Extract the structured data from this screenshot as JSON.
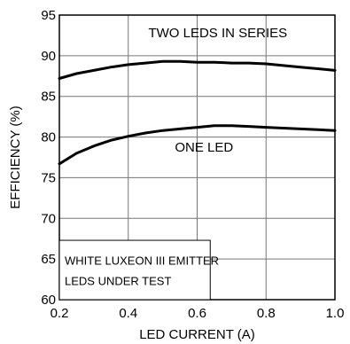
{
  "chart_data": {
    "type": "line",
    "xlabel": "LED CURRENT (A)",
    "ylabel": "EFFICIENCY (%)",
    "xlim": [
      0.2,
      1.0
    ],
    "ylim": [
      60,
      95
    ],
    "xticks": [
      0.2,
      0.4,
      0.6,
      0.8,
      1.0
    ],
    "xtick_labels": [
      "0.2",
      "0.4",
      "0.6",
      "0.8",
      "1.0"
    ],
    "yticks": [
      60,
      65,
      70,
      75,
      80,
      85,
      90,
      95
    ],
    "ytick_labels": [
      "60",
      "65",
      "70",
      "75",
      "80",
      "85",
      "90",
      "95"
    ],
    "grid": true,
    "series": [
      {
        "name": "TWO LEDS IN SERIES",
        "x": [
          0.2,
          0.25,
          0.3,
          0.35,
          0.4,
          0.45,
          0.5,
          0.55,
          0.6,
          0.65,
          0.7,
          0.75,
          0.8,
          0.85,
          0.9,
          0.95,
          1.0
        ],
        "y": [
          87.2,
          87.8,
          88.2,
          88.6,
          88.9,
          89.1,
          89.3,
          89.3,
          89.2,
          89.2,
          89.1,
          89.1,
          89.0,
          88.8,
          88.6,
          88.4,
          88.2
        ]
      },
      {
        "name": "ONE LED",
        "x": [
          0.2,
          0.25,
          0.3,
          0.35,
          0.4,
          0.45,
          0.5,
          0.55,
          0.6,
          0.65,
          0.7,
          0.75,
          0.8,
          0.85,
          0.9,
          0.95,
          1.0
        ],
        "y": [
          76.7,
          78.0,
          78.9,
          79.6,
          80.1,
          80.5,
          80.8,
          81.0,
          81.2,
          81.4,
          81.4,
          81.3,
          81.2,
          81.1,
          81.0,
          80.9,
          80.8
        ]
      }
    ],
    "annotations": {
      "series_top_label": "TWO LEDS IN SERIES",
      "series_bottom_label": "ONE LED",
      "note_line1": "WHITE LUXEON III EMITTER",
      "note_line2": "LEDS UNDER TEST"
    }
  }
}
